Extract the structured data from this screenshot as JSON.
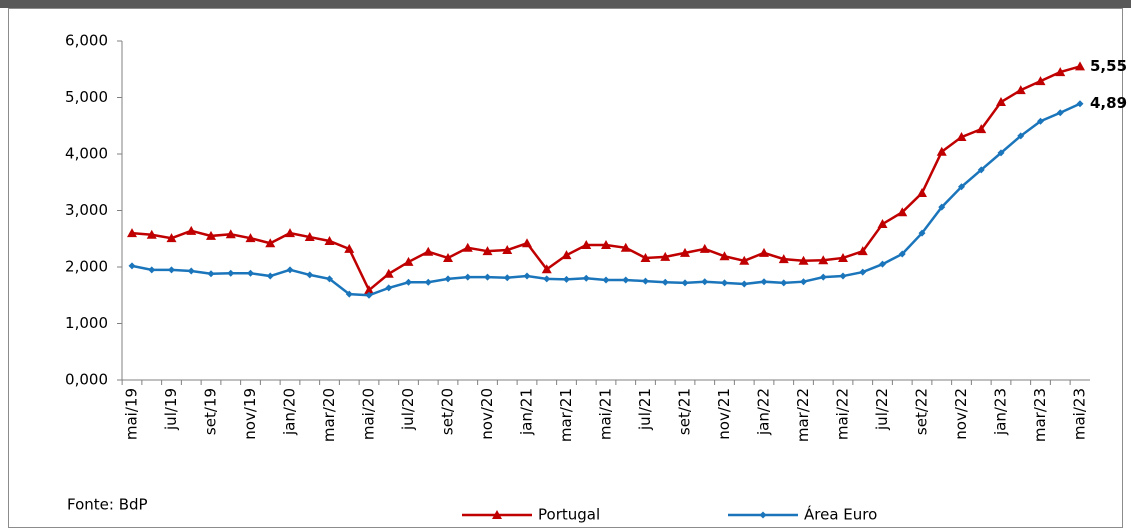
{
  "chart_data": {
    "type": "line",
    "categories": [
      "mai/19",
      null,
      "jul/19",
      null,
      "set/19",
      null,
      "nov/19",
      null,
      "jan/20",
      null,
      "mar/20",
      null,
      "mai/20",
      null,
      "jul/20",
      null,
      "set/20",
      null,
      "nov/20",
      null,
      "jan/21",
      null,
      "mar/21",
      null,
      "mai/21",
      null,
      "jul/21",
      null,
      "set/21",
      null,
      "nov/21",
      null,
      "jan/22",
      null,
      "mar/22",
      null,
      "mai/22",
      null,
      "jul/22",
      null,
      "set/22",
      null,
      "nov/22",
      null,
      "jan/23",
      null,
      "mar/23",
      null,
      "mai/23"
    ],
    "series": [
      {
        "name": "Portugal",
        "color": "#c00000",
        "marker": "triangle",
        "values": [
          2.6,
          2.57,
          2.51,
          2.64,
          2.55,
          2.58,
          2.51,
          2.42,
          2.6,
          2.53,
          2.46,
          2.32,
          1.59,
          1.88,
          2.09,
          2.27,
          2.16,
          2.34,
          2.28,
          2.3,
          2.42,
          1.96,
          2.21,
          2.39,
          2.39,
          2.34,
          2.16,
          2.18,
          2.25,
          2.32,
          2.19,
          2.11,
          2.25,
          2.14,
          2.11,
          2.12,
          2.16,
          2.28,
          2.76,
          2.97,
          3.31,
          4.04,
          4.3,
          4.44,
          4.92,
          5.13,
          5.29,
          5.45,
          5.55
        ],
        "value_labels": [
          null,
          null,
          null,
          null,
          null,
          null,
          null,
          null,
          null,
          null,
          null,
          null,
          null,
          null,
          null,
          null,
          null,
          null,
          null,
          null,
          null,
          null,
          null,
          null,
          null,
          null,
          null,
          null,
          null,
          null,
          null,
          null,
          null,
          null,
          null,
          null,
          null,
          null,
          null,
          null,
          null,
          null,
          null,
          null,
          null,
          null,
          null,
          null,
          "5,55"
        ]
      },
      {
        "name": "Área Euro",
        "color": "#1b75bb",
        "marker": "diamond",
        "values": [
          2.02,
          1.95,
          1.95,
          1.93,
          1.88,
          1.89,
          1.89,
          1.84,
          1.95,
          1.86,
          1.79,
          1.52,
          1.5,
          1.63,
          1.73,
          1.73,
          1.79,
          1.82,
          1.82,
          1.81,
          1.84,
          1.79,
          1.78,
          1.8,
          1.77,
          1.77,
          1.75,
          1.73,
          1.72,
          1.74,
          1.72,
          1.7,
          1.74,
          1.72,
          1.74,
          1.82,
          1.84,
          1.91,
          2.05,
          2.23,
          2.6,
          3.06,
          3.42,
          3.72,
          4.02,
          4.32,
          4.58,
          4.73,
          4.89
        ],
        "value_labels": [
          null,
          null,
          null,
          null,
          null,
          null,
          null,
          null,
          null,
          null,
          null,
          null,
          null,
          null,
          null,
          null,
          null,
          null,
          null,
          null,
          null,
          null,
          null,
          null,
          null,
          null,
          null,
          null,
          null,
          null,
          null,
          null,
          null,
          null,
          null,
          null,
          null,
          null,
          null,
          null,
          null,
          null,
          null,
          null,
          null,
          null,
          null,
          null,
          "4,89"
        ]
      }
    ],
    "ylim": [
      0,
      6
    ],
    "yticks": [
      {
        "value": 0,
        "label": "0,000"
      },
      {
        "value": 1,
        "label": "1,000"
      },
      {
        "value": 2,
        "label": "2,000"
      },
      {
        "value": 3,
        "label": "3,000"
      },
      {
        "value": 4,
        "label": "4,000"
      },
      {
        "value": 5,
        "label": "5,000"
      },
      {
        "value": 6,
        "label": "6,000"
      }
    ],
    "grid": false,
    "legend": "bottom",
    "source": "Fonte: BdP"
  }
}
